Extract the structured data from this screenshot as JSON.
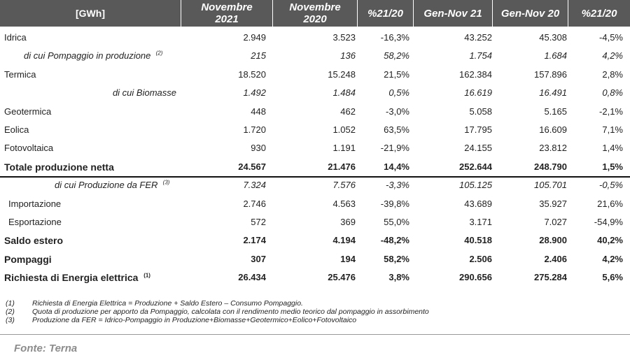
{
  "headers": {
    "unit": "[GWh]",
    "nov21_a": "Novembre",
    "nov21_b": "2021",
    "nov20_a": "Novembre",
    "nov20_b": "2020",
    "pct1": "%21/20",
    "gen21": "Gen-Nov 21",
    "gen20": "Gen-Nov 20",
    "pct2": "%21/20"
  },
  "rows": [
    {
      "label": "Idrica",
      "sup": "",
      "nov21": "2.949",
      "nov20": "3.523",
      "pct1": "-16,3%",
      "gen21": "43.252",
      "gen20": "45.308",
      "pct2": "-4,5%"
    },
    {
      "label": "di cui Pompaggio in produzione",
      "sup": "(2)",
      "nov21": "215",
      "nov20": "136",
      "pct1": "58,2%",
      "gen21": "1.754",
      "gen20": "1.684",
      "pct2": "4,2%"
    },
    {
      "label": "Termica",
      "sup": "",
      "nov21": "18.520",
      "nov20": "15.248",
      "pct1": "21,5%",
      "gen21": "162.384",
      "gen20": "157.896",
      "pct2": "2,8%"
    },
    {
      "label": "di cui Biomasse",
      "sup": "",
      "nov21": "1.492",
      "nov20": "1.484",
      "pct1": "0,5%",
      "gen21": "16.619",
      "gen20": "16.491",
      "pct2": "0,8%"
    },
    {
      "label": "Geotermica",
      "sup": "",
      "nov21": "448",
      "nov20": "462",
      "pct1": "-3,0%",
      "gen21": "5.058",
      "gen20": "5.165",
      "pct2": "-2,1%"
    },
    {
      "label": "Eolica",
      "sup": "",
      "nov21": "1.720",
      "nov20": "1.052",
      "pct1": "63,5%",
      "gen21": "17.795",
      "gen20": "16.609",
      "pct2": "7,1%"
    },
    {
      "label": "Fotovoltaica",
      "sup": "",
      "nov21": "930",
      "nov20": "1.191",
      "pct1": "-21,9%",
      "gen21": "24.155",
      "gen20": "23.812",
      "pct2": "1,4%"
    },
    {
      "label": "Totale produzione netta",
      "sup": "",
      "nov21": "24.567",
      "nov20": "21.476",
      "pct1": "14,4%",
      "gen21": "252.644",
      "gen20": "248.790",
      "pct2": "1,5%"
    },
    {
      "label": "di cui Produzione da FER",
      "sup": "(3)",
      "nov21": "7.324",
      "nov20": "7.576",
      "pct1": "-3,3%",
      "gen21": "105.125",
      "gen20": "105.701",
      "pct2": "-0,5%"
    },
    {
      "label": "Importazione",
      "sup": "",
      "nov21": "2.746",
      "nov20": "4.563",
      "pct1": "-39,8%",
      "gen21": "43.689",
      "gen20": "35.927",
      "pct2": "21,6%"
    },
    {
      "label": "Esportazione",
      "sup": "",
      "nov21": "572",
      "nov20": "369",
      "pct1": "55,0%",
      "gen21": "3.171",
      "gen20": "7.027",
      "pct2": "-54,9%"
    },
    {
      "label": "Saldo estero",
      "sup": "",
      "nov21": "2.174",
      "nov20": "4.194",
      "pct1": "-48,2%",
      "gen21": "40.518",
      "gen20": "28.900",
      "pct2": "40,2%"
    },
    {
      "label": "Pompaggi",
      "sup": "",
      "nov21": "307",
      "nov20": "194",
      "pct1": "58,2%",
      "gen21": "2.506",
      "gen20": "2.406",
      "pct2": "4,2%"
    },
    {
      "label": "Richiesta di Energia elettrica",
      "sup": "(1)",
      "nov21": "26.434",
      "nov20": "25.476",
      "pct1": "3,8%",
      "gen21": "290.656",
      "gen20": "275.284",
      "pct2": "5,6%"
    }
  ],
  "notes": [
    {
      "num": "(1)",
      "text": "Richiesta di Energia Elettrica = Produzione  + Saldo Estero – Consumo  Pompaggio."
    },
    {
      "num": "(2)",
      "text": "Quota di produzione  per apporto  da Pompaggio,  calcolata con il rendimento  medio  teorico dal pompaggio  in assorbimento"
    },
    {
      "num": "(3)",
      "text": "Produzione  da FER = Idrico-Pompaggio   in Produzione+Biomasse+Geotermico+Eolico+Fotovoltaico"
    }
  ],
  "source": "Fonte: Terna"
}
